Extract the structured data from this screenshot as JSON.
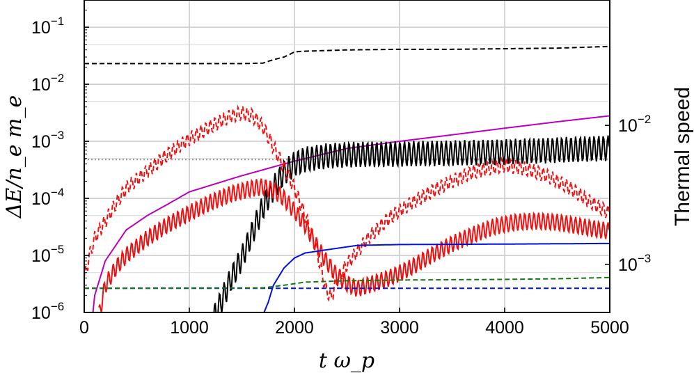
{
  "chart_data": {
    "type": "line",
    "xlabel": "t ω_p",
    "ylabel": "ΔE/n_e m_e",
    "y2label": "Thermal speed",
    "xlim": [
      0,
      5000
    ],
    "ylim": [
      1e-06,
      0.3
    ],
    "yscale": "log",
    "y2lim": [
      0.00045,
      0.08
    ],
    "y2scale": "log",
    "grid": true,
    "x_ticks": [
      "0",
      "1000",
      "2000",
      "3000",
      "4000",
      "5000"
    ],
    "y_ticks": [
      {
        "value": 1e-06,
        "base": "10",
        "exp": "−6"
      },
      {
        "value": 1e-05,
        "base": "10",
        "exp": "−5"
      },
      {
        "value": 0.0001,
        "base": "10",
        "exp": "−4"
      },
      {
        "value": 0.001,
        "base": "10",
        "exp": "−3"
      },
      {
        "value": 0.01,
        "base": "10",
        "exp": "−2"
      },
      {
        "value": 0.1,
        "base": "10",
        "exp": "−1"
      }
    ],
    "y2_ticks": [
      {
        "value": 0.01,
        "base": "10",
        "exp": "−2"
      },
      {
        "value": 0.001,
        "base": "10",
        "exp": "−3"
      }
    ],
    "series": [
      {
        "style": "dashed",
        "color": "#000000",
        "axis": "left",
        "points": [
          [
            0,
            0.023
          ],
          [
            1500,
            0.023
          ],
          [
            1700,
            0.0235
          ],
          [
            1800,
            0.027
          ],
          [
            1900,
            0.03
          ],
          [
            1950,
            0.033
          ],
          [
            2000,
            0.037
          ],
          [
            2100,
            0.038
          ],
          [
            2500,
            0.04
          ],
          [
            3000,
            0.041
          ],
          [
            3500,
            0.041
          ],
          [
            4000,
            0.042
          ],
          [
            4500,
            0.043
          ],
          [
            5000,
            0.046
          ]
        ]
      },
      {
        "style": "dotted",
        "color": "#999999",
        "axis": "left",
        "points": [
          [
            0,
            0.00048
          ],
          [
            5000,
            0.00048
          ]
        ]
      },
      {
        "style": "solid",
        "color": "#bb00bb",
        "axis": "left",
        "points": [
          [
            80,
            9e-07
          ],
          [
            100,
            2e-06
          ],
          [
            150,
            4e-06
          ],
          [
            200,
            8e-06
          ],
          [
            300,
            1.5e-05
          ],
          [
            400,
            2.8e-05
          ],
          [
            600,
            5e-05
          ],
          [
            800,
            8e-05
          ],
          [
            1000,
            0.00013
          ],
          [
            1500,
            0.00025
          ],
          [
            2000,
            0.00045
          ],
          [
            2500,
            0.00075
          ],
          [
            3000,
            0.001
          ],
          [
            3500,
            0.0013
          ],
          [
            4000,
            0.0017
          ],
          [
            4500,
            0.0022
          ],
          [
            5000,
            0.0028
          ]
        ]
      },
      {
        "style": "solid",
        "color": "#000000",
        "axis": "left",
        "oscillate": 0.45,
        "points": [
          [
            1200,
            6e-07
          ],
          [
            1300,
            1.5e-06
          ],
          [
            1400,
            4e-06
          ],
          [
            1500,
            9e-06
          ],
          [
            1600,
            2.5e-05
          ],
          [
            1700,
            7e-05
          ],
          [
            1800,
            0.00015
          ],
          [
            1900,
            0.00028
          ],
          [
            2000,
            0.0004
          ],
          [
            2100,
            0.00048
          ],
          [
            2300,
            0.00055
          ],
          [
            2500,
            0.00058
          ],
          [
            3000,
            0.0006
          ],
          [
            3500,
            0.00062
          ],
          [
            4000,
            0.00065
          ],
          [
            4500,
            0.0007
          ],
          [
            5000,
            0.00076
          ]
        ]
      },
      {
        "style": "solid",
        "color": "#ee1111",
        "axis": "left",
        "oscillate": 0.3,
        "points": [
          [
            140,
            9e-07
          ],
          [
            200,
            3e-06
          ],
          [
            300,
            6e-06
          ],
          [
            400,
            1e-05
          ],
          [
            600,
            2e-05
          ],
          [
            800,
            3.5e-05
          ],
          [
            1000,
            5.5e-05
          ],
          [
            1200,
            8.5e-05
          ],
          [
            1400,
            0.00012
          ],
          [
            1600,
            0.00015
          ],
          [
            1700,
            0.00016
          ],
          [
            1800,
            0.00014
          ],
          [
            1900,
            0.0001
          ],
          [
            2000,
            6e-05
          ],
          [
            2100,
            3.5e-05
          ],
          [
            2200,
            1.6e-05
          ],
          [
            2300,
            8e-06
          ],
          [
            2400,
            4.5e-06
          ],
          [
            2500,
            3.2e-06
          ],
          [
            2600,
            2.6e-06
          ],
          [
            2700,
            3e-06
          ],
          [
            2900,
            4e-06
          ],
          [
            3100,
            6e-06
          ],
          [
            3300,
            1e-05
          ],
          [
            3500,
            1.6e-05
          ],
          [
            3700,
            2.3e-05
          ],
          [
            3900,
            3.2e-05
          ],
          [
            4100,
            3.8e-05
          ],
          [
            4300,
            4e-05
          ],
          [
            4500,
            3.8e-05
          ],
          [
            4700,
            3.3e-05
          ],
          [
            4900,
            2.8e-05
          ],
          [
            5000,
            2.7e-05
          ]
        ]
      },
      {
        "style": "dashed",
        "color": "#ee1111",
        "axis": "left",
        "oscillate": 0.25,
        "points": [
          [
            0,
            4e-06
          ],
          [
            50,
            1e-05
          ],
          [
            100,
            2e-05
          ],
          [
            200,
            4e-05
          ],
          [
            300,
            8e-05
          ],
          [
            400,
            0.00015
          ],
          [
            600,
            0.0003
          ],
          [
            800,
            0.0006
          ],
          [
            1000,
            0.0011
          ],
          [
            1200,
            0.0018
          ],
          [
            1400,
            0.0028
          ],
          [
            1500,
            0.0031
          ],
          [
            1600,
            0.0028
          ],
          [
            1700,
            0.0018
          ],
          [
            1800,
            0.0008
          ],
          [
            1900,
            0.00035
          ],
          [
            2000,
            0.00015
          ],
          [
            2100,
            5e-05
          ],
          [
            2200,
            1.5e-05
          ],
          [
            2300,
            2.5e-06
          ],
          [
            2350,
            1.8e-06
          ],
          [
            2400,
            3.5e-06
          ],
          [
            2500,
            7e-06
          ],
          [
            2700,
            2e-05
          ],
          [
            2900,
            4.5e-05
          ],
          [
            3100,
            8e-05
          ],
          [
            3300,
            0.00013
          ],
          [
            3500,
            0.0002
          ],
          [
            3700,
            0.00029
          ],
          [
            3900,
            0.00035
          ],
          [
            4000,
            0.00038
          ],
          [
            4200,
            0.00033
          ],
          [
            4400,
            0.00025
          ],
          [
            4600,
            0.00016
          ],
          [
            4800,
            9e-05
          ],
          [
            5000,
            5.5e-05
          ]
        ]
      },
      {
        "style": "solid",
        "color": "#0011dd",
        "axis": "left",
        "points": [
          [
            1700,
            9e-07
          ],
          [
            1750,
            1.5e-06
          ],
          [
            1800,
            3e-06
          ],
          [
            1900,
            6e-06
          ],
          [
            2000,
            9e-06
          ],
          [
            2100,
            1.1e-05
          ],
          [
            2300,
            1.25e-05
          ],
          [
            2600,
            1.5e-05
          ],
          [
            3000,
            1.55e-05
          ],
          [
            4000,
            1.58e-05
          ],
          [
            5000,
            1.62e-05
          ]
        ]
      },
      {
        "style": "dashed",
        "color": "#0011dd",
        "axis": "left",
        "points": [
          [
            0,
            2.65e-06
          ],
          [
            5000,
            2.65e-06
          ]
        ]
      },
      {
        "style": "dashed",
        "color": "#117711",
        "axis": "left",
        "points": [
          [
            0,
            2.65e-06
          ],
          [
            1700,
            2.7e-06
          ],
          [
            1900,
            3e-06
          ],
          [
            2100,
            3.4e-06
          ],
          [
            2500,
            3.6e-06
          ],
          [
            3000,
            3.7e-06
          ],
          [
            4000,
            3.8e-06
          ],
          [
            4500,
            3.9e-06
          ],
          [
            5000,
            4.1e-06
          ]
        ]
      }
    ]
  }
}
